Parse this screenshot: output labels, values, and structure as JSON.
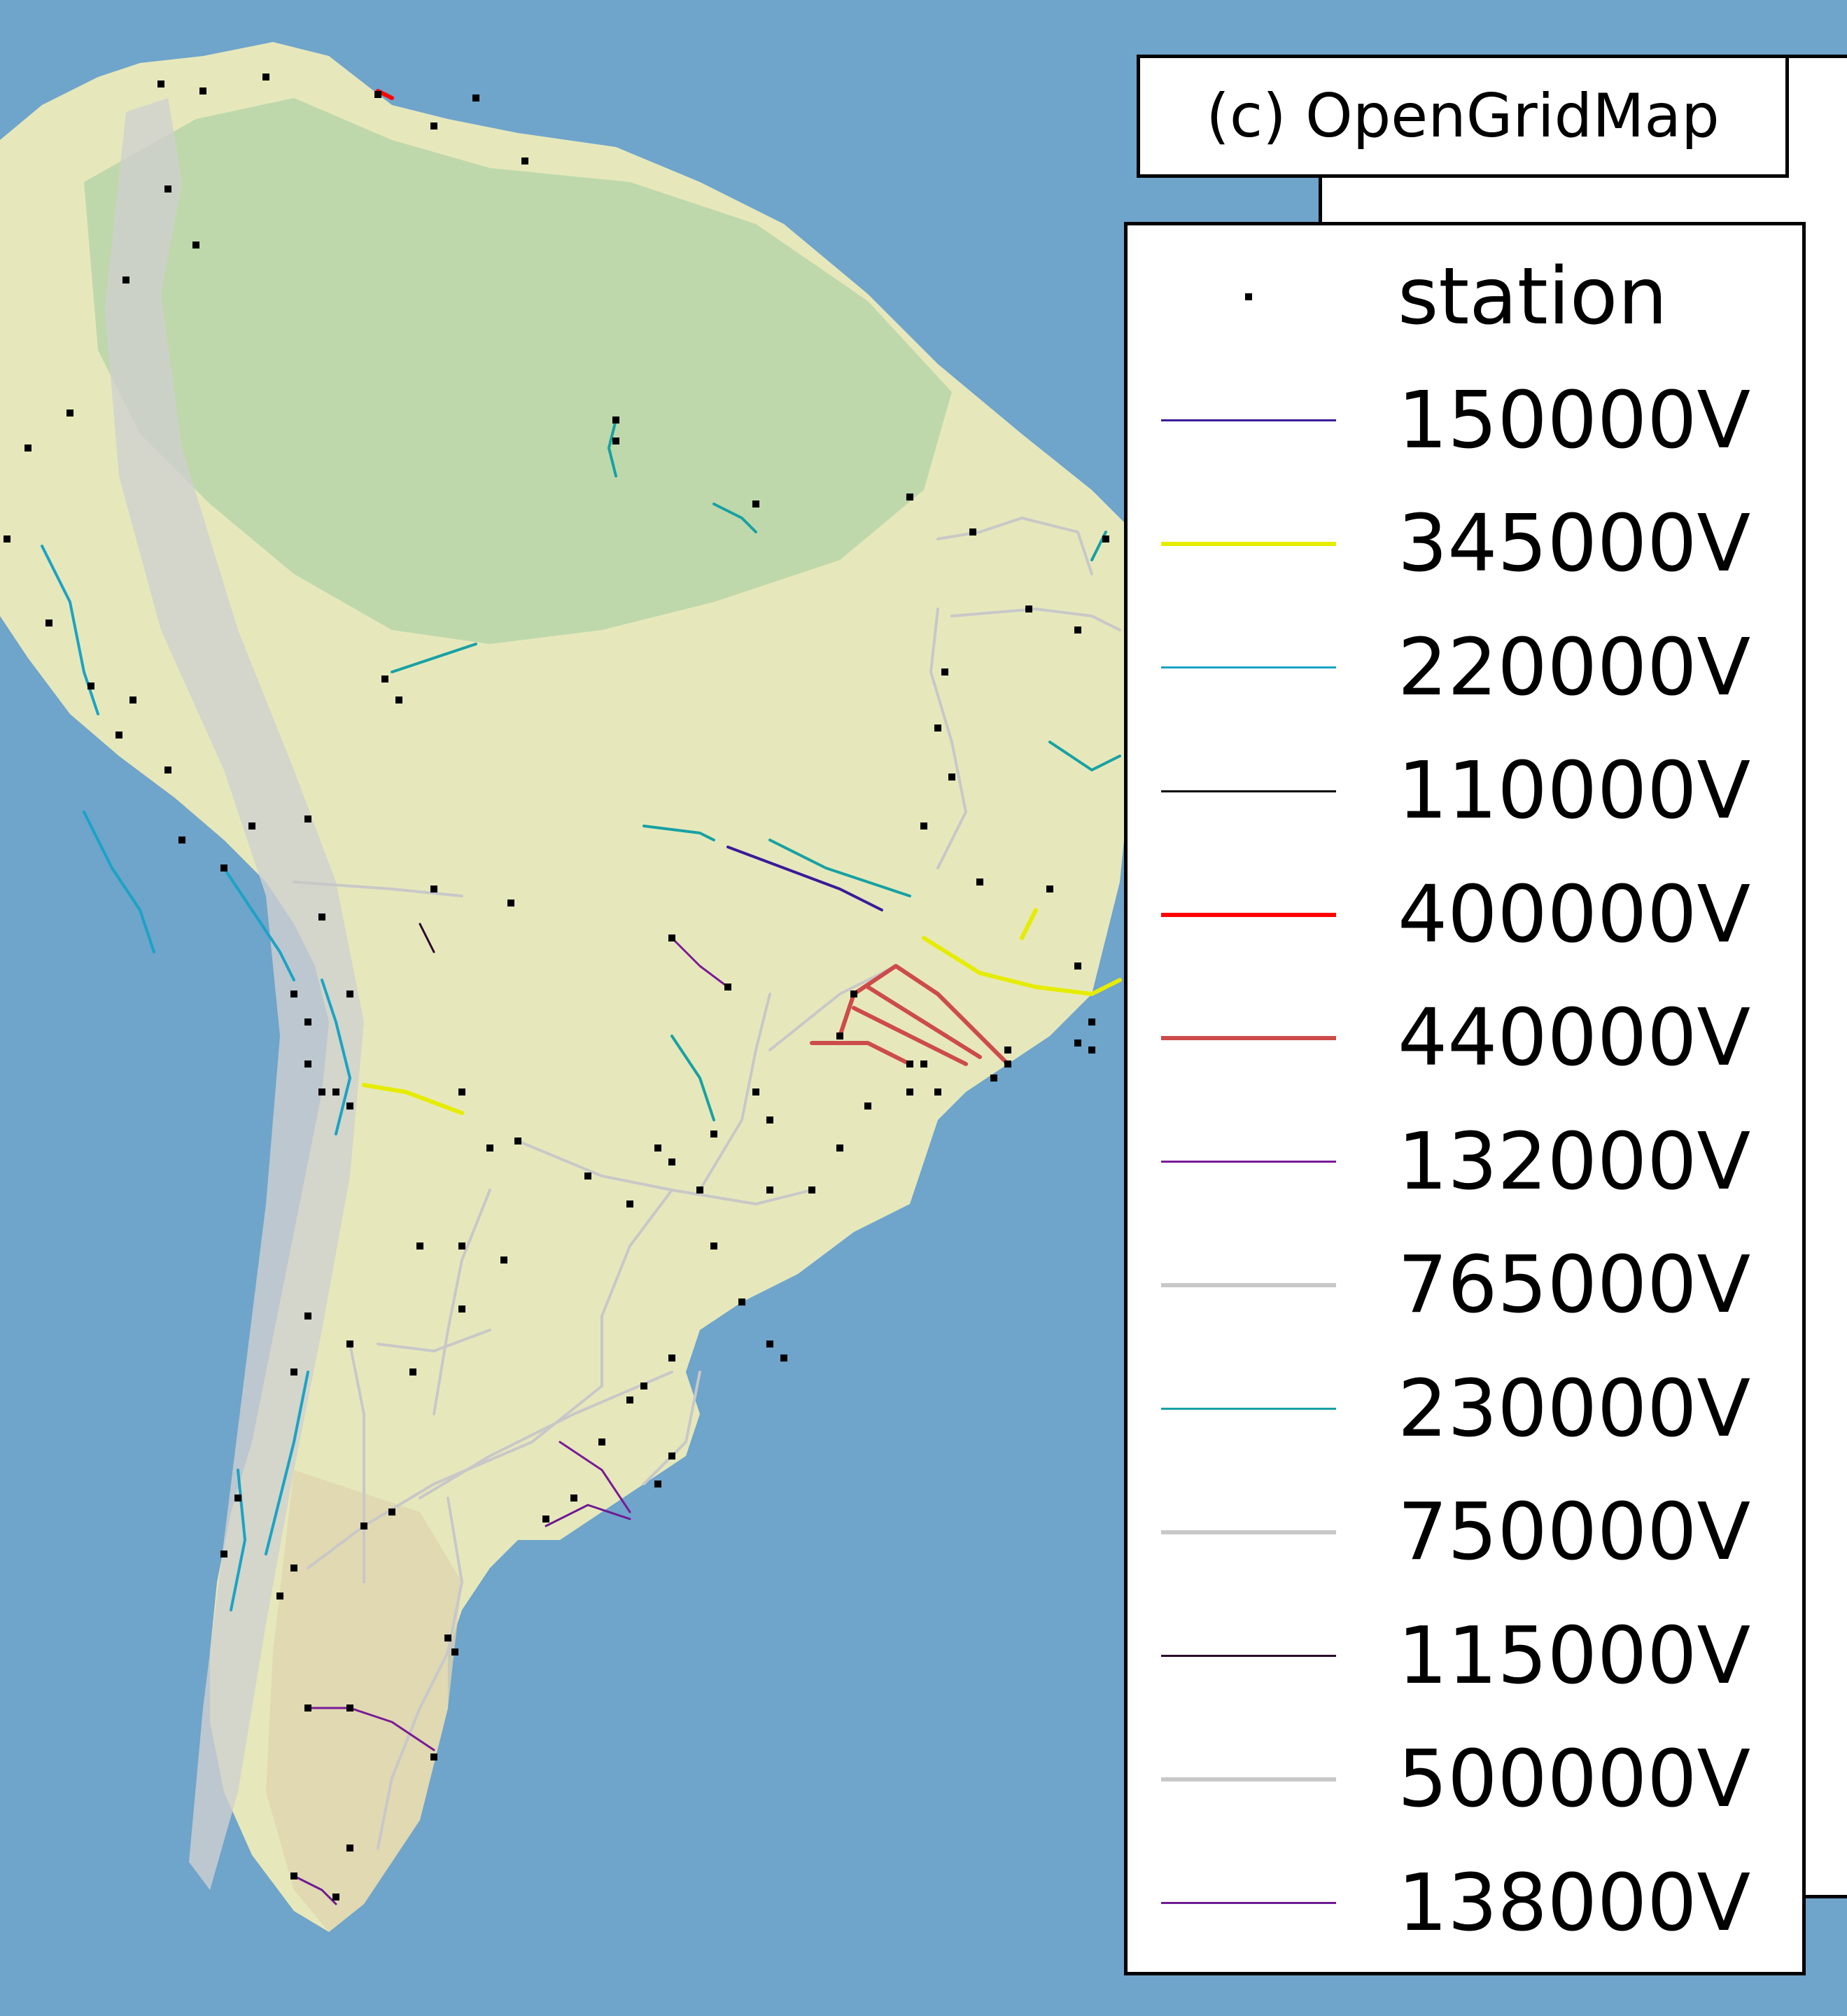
{
  "title": "(c) OpenGridMap",
  "legend": {
    "items": [
      {
        "label": "station",
        "kind": "marker",
        "color": "#000000"
      },
      {
        "label": "150000V",
        "kind": "line",
        "color": "#3b1a9a",
        "weight": "thin"
      },
      {
        "label": "345000V",
        "kind": "line",
        "color": "#e6ec00",
        "weight": "thick"
      },
      {
        "label": "220000V",
        "kind": "line",
        "color": "#1ba3c6",
        "weight": "thin"
      },
      {
        "label": "110000V",
        "kind": "line",
        "color": "#000000",
        "weight": "thin"
      },
      {
        "label": "400000V",
        "kind": "line",
        "color": "#ff0000",
        "weight": "thick"
      },
      {
        "label": "440000V",
        "kind": "line",
        "color": "#cd4b4b",
        "weight": "thick"
      },
      {
        "label": "132000V",
        "kind": "line",
        "color": "#7a1a96",
        "weight": "thin"
      },
      {
        "label": "765000V",
        "kind": "line",
        "color": "#c8c8c8",
        "weight": "thick"
      },
      {
        "label": "230000V",
        "kind": "line",
        "color": "#17a1a4",
        "weight": "thin"
      },
      {
        "label": "750000V",
        "kind": "line",
        "color": "#c8c8c8",
        "weight": "thick"
      },
      {
        "label": "115000V",
        "kind": "line",
        "color": "#2a0a2a",
        "weight": "thin"
      },
      {
        "label": "500000V",
        "kind": "line",
        "color": "#c8c8c8",
        "weight": "thick"
      },
      {
        "label": "138000V",
        "kind": "line",
        "color": "#6f1a93",
        "weight": "thin"
      }
    ]
  },
  "colors": {
    "ocean": "#6fa4cb",
    "land_forest": "#b7d5a8",
    "land_plain": "#e6e8bb",
    "land_arid": "#dfd4b0",
    "andes": "#cfcfcf"
  }
}
